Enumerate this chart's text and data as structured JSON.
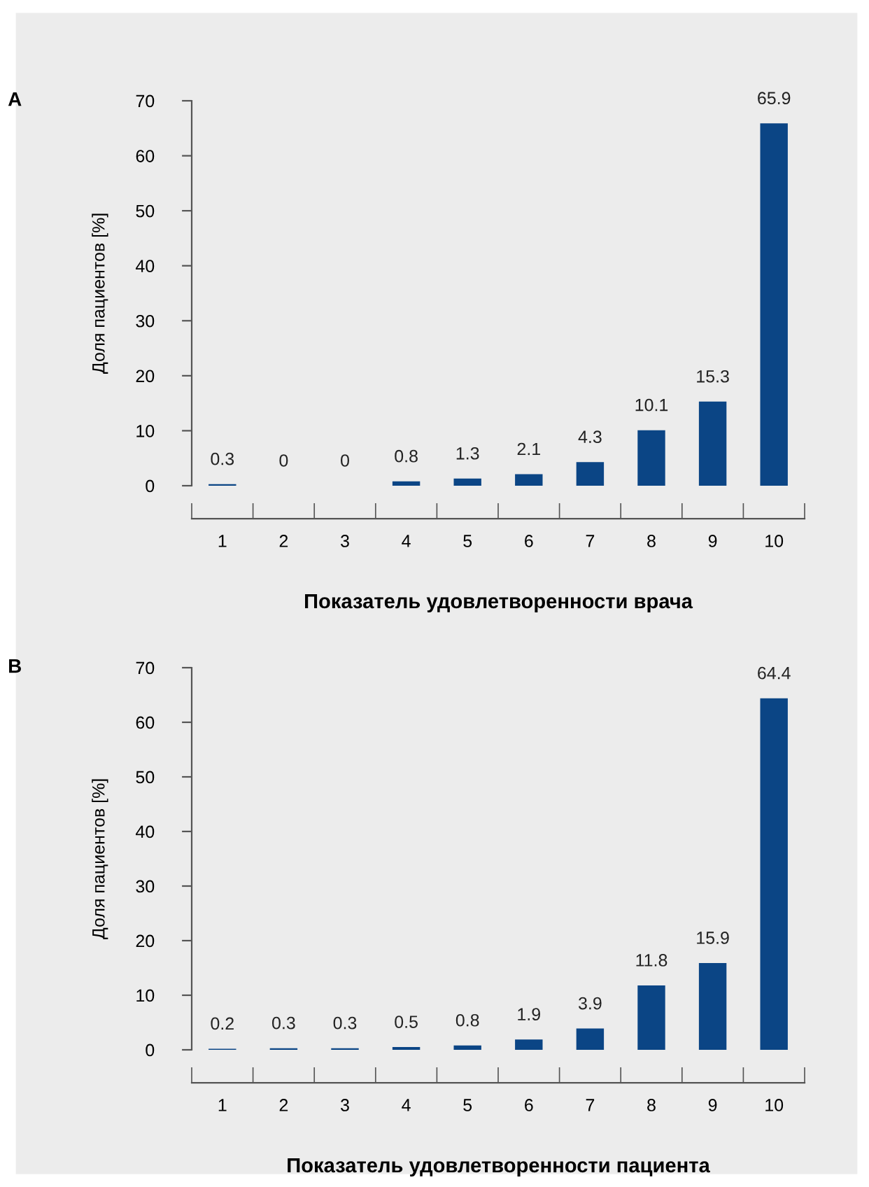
{
  "chart_data": [
    {
      "type": "bar",
      "title": "A",
      "ylabel": "Доля пациентов [%]",
      "xlabel": "Показатель удовлетворенности врача",
      "categories": [
        "1",
        "2",
        "3",
        "4",
        "5",
        "6",
        "7",
        "8",
        "9",
        "10"
      ],
      "values": [
        0.3,
        0,
        0,
        0.8,
        1.3,
        2.1,
        4.3,
        10.1,
        15.3,
        65.9
      ],
      "color": "#0b4585",
      "ylim": [
        0,
        70
      ],
      "yticks": [
        0,
        10,
        20,
        30,
        40,
        50,
        60,
        70
      ],
      "data_labels": true,
      "grid": false,
      "legend": false
    },
    {
      "type": "bar",
      "title": "B",
      "ylabel": "Доля пациентов [%]",
      "xlabel": "Показатель удовлетворенности пациента",
      "categories": [
        "1",
        "2",
        "3",
        "4",
        "5",
        "6",
        "7",
        "8",
        "9",
        "10"
      ],
      "values": [
        0.2,
        0.3,
        0.3,
        0.5,
        0.8,
        1.9,
        3.9,
        11.8,
        15.9,
        64.4
      ],
      "color": "#0b4585",
      "ylim": [
        0,
        70
      ],
      "yticks": [
        0,
        10,
        20,
        30,
        40,
        50,
        60,
        70
      ],
      "data_labels": true,
      "grid": false,
      "legend": false
    }
  ]
}
